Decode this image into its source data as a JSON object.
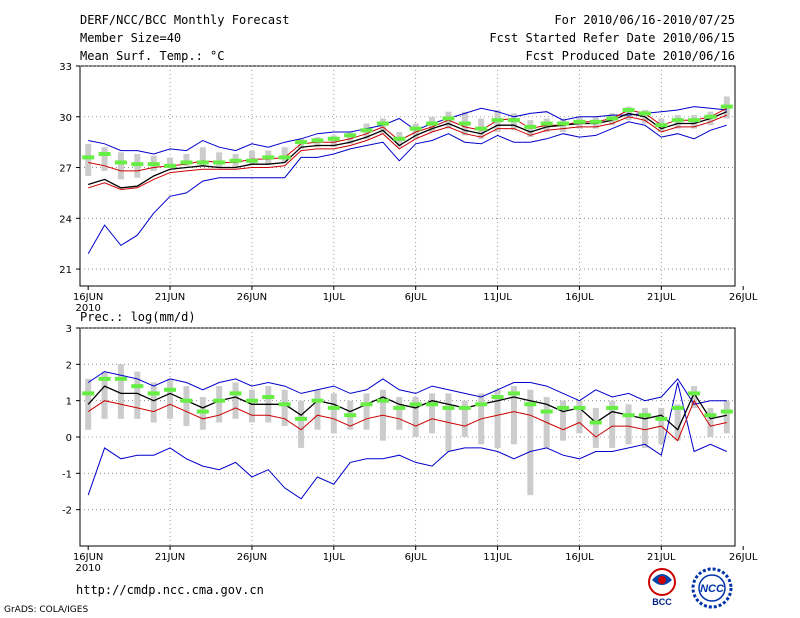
{
  "header": {
    "title": "DERF/NCC/BCC Monthly Forecast",
    "member_size": "Member Size=40",
    "variable": "Mean Surf. Temp.: °C",
    "period": "For 2010/06/16-2010/07/25",
    "refer_date": "Fcst Started Refer Date 2010/06/15",
    "produced_date": "Fcst Produced Date 2010/06/16"
  },
  "footer": {
    "url": "http://cmdp.ncc.cma.gov.cn",
    "grads": "GrADS: COLA/IGES",
    "logo_left": "BCC",
    "logo_right": "NCC"
  },
  "colors": {
    "envelope": "#0000cc",
    "ensemble_mean": "#000000",
    "lower_line": "#cc0000",
    "median_marker": "#66ee44",
    "spread_bar": "#cccccc",
    "grid": "#808080"
  },
  "chart_data": [
    {
      "type": "line",
      "title": "Mean Surf. Temp.: °C",
      "x_tick_labels": [
        "16JUN",
        "21JUN",
        "26JUN",
        "1JUL",
        "6JUL",
        "11JUL",
        "16JUL",
        "21JUL",
        "26JUL"
      ],
      "x_year_label": "2010",
      "ylim": [
        20,
        33
      ],
      "y_ticks": [
        21,
        24,
        27,
        30,
        33
      ],
      "days": 40,
      "series": [
        {
          "name": "max",
          "values": [
            28.6,
            28.4,
            28.0,
            28.0,
            27.8,
            28.1,
            28.0,
            28.6,
            28.2,
            28.0,
            28.4,
            28.2,
            28.5,
            28.7,
            29.0,
            29.1,
            29.1,
            29.3,
            29.5,
            29.9,
            29.2,
            29.6,
            29.9,
            30.2,
            30.5,
            30.3,
            30.0,
            30.2,
            30.3,
            29.8,
            30.0,
            30.0,
            30.1,
            30.1,
            30.2,
            30.3,
            30.4,
            30.6,
            30.5,
            30.4
          ]
        },
        {
          "name": "upper",
          "values": [
            27.3,
            27.1,
            26.8,
            26.8,
            27.0,
            27.1,
            27.2,
            27.4,
            27.3,
            27.3,
            27.5,
            27.5,
            27.6,
            28.4,
            28.5,
            28.5,
            28.7,
            29.0,
            29.4,
            28.6,
            29.1,
            29.4,
            29.8,
            29.4,
            29.2,
            29.8,
            29.9,
            29.3,
            29.5,
            29.5,
            29.7,
            29.7,
            29.9,
            30.4,
            30.2,
            29.5,
            29.8,
            29.8,
            30.0,
            30.5
          ]
        },
        {
          "name": "mean",
          "values": [
            26.0,
            26.3,
            25.8,
            25.9,
            26.5,
            26.9,
            27.0,
            27.1,
            27.0,
            27.0,
            27.2,
            27.2,
            27.3,
            28.2,
            28.3,
            28.3,
            28.5,
            28.8,
            29.2,
            28.3,
            28.9,
            29.3,
            29.6,
            29.2,
            29.0,
            29.5,
            29.5,
            29.1,
            29.4,
            29.5,
            29.6,
            29.6,
            29.8,
            30.2,
            30.0,
            29.3,
            29.6,
            29.6,
            29.9,
            30.3
          ]
        },
        {
          "name": "lower",
          "values": [
            25.8,
            26.1,
            25.7,
            25.8,
            26.3,
            26.7,
            26.8,
            26.9,
            26.9,
            26.9,
            27.0,
            27.0,
            27.1,
            28.0,
            28.1,
            28.1,
            28.3,
            28.6,
            29.0,
            28.1,
            28.7,
            29.1,
            29.4,
            29.0,
            28.8,
            29.3,
            29.3,
            28.9,
            29.2,
            29.3,
            29.4,
            29.4,
            29.6,
            30.0,
            29.8,
            29.1,
            29.4,
            29.4,
            29.7,
            30.1
          ]
        },
        {
          "name": "min",
          "values": [
            21.9,
            23.6,
            22.4,
            23.0,
            24.3,
            25.3,
            25.5,
            26.2,
            26.4,
            26.4,
            26.4,
            26.4,
            26.4,
            27.6,
            27.6,
            27.8,
            28.1,
            28.3,
            28.5,
            27.4,
            28.4,
            28.6,
            29.0,
            28.5,
            28.4,
            28.9,
            28.5,
            28.5,
            28.7,
            29.0,
            28.8,
            28.9,
            29.3,
            29.7,
            29.5,
            28.8,
            29.0,
            28.7,
            29.2,
            29.5
          ]
        },
        {
          "name": "median",
          "values": [
            27.6,
            27.8,
            27.3,
            27.2,
            27.2,
            27.1,
            27.3,
            27.3,
            27.3,
            27.4,
            27.4,
            27.6,
            27.6,
            28.5,
            28.6,
            28.7,
            28.9,
            29.2,
            29.6,
            28.7,
            29.3,
            29.6,
            29.9,
            29.6,
            29.3,
            29.8,
            29.8,
            29.4,
            29.6,
            29.6,
            29.7,
            29.7,
            29.9,
            30.4,
            30.2,
            29.5,
            29.8,
            29.8,
            30.0,
            30.6
          ]
        },
        {
          "name": "spread_low",
          "values": [
            26.5,
            26.8,
            26.3,
            26.4,
            26.8,
            27.0,
            27.1,
            27.1,
            27.0,
            27.0,
            27.2,
            27.2,
            27.3,
            28.1,
            28.2,
            28.2,
            28.4,
            28.7,
            29.0,
            28.2,
            28.7,
            29.1,
            29.3,
            28.9,
            28.7,
            29.1,
            29.2,
            28.8,
            29.1,
            29.1,
            29.3,
            29.3,
            29.5,
            29.8,
            29.6,
            29.1,
            29.3,
            29.3,
            29.5,
            29.9
          ]
        },
        {
          "name": "spread_high",
          "values": [
            28.4,
            28.2,
            27.9,
            27.8,
            27.7,
            27.6,
            27.8,
            28.2,
            27.9,
            27.8,
            28.0,
            28.0,
            28.2,
            28.7,
            28.8,
            28.9,
            29.1,
            29.6,
            29.9,
            29.1,
            29.6,
            30.0,
            30.3,
            30.3,
            29.9,
            30.4,
            30.2,
            29.8,
            29.9,
            29.9,
            30.0,
            30.0,
            30.2,
            30.6,
            30.4,
            29.9,
            30.1,
            30.1,
            30.3,
            31.2
          ]
        }
      ]
    },
    {
      "type": "line",
      "title": "Prec.: log(mm/d)",
      "x_tick_labels": [
        "16JUN",
        "21JUN",
        "26JUN",
        "1JUL",
        "6JUL",
        "11JUL",
        "16JUL",
        "21JUL",
        "26JUL"
      ],
      "x_year_label": "2010",
      "ylim": [
        -3,
        3
      ],
      "y_ticks": [
        -2,
        -1,
        0,
        1,
        2,
        3
      ],
      "days": 40,
      "series": [
        {
          "name": "max",
          "values": [
            1.5,
            1.8,
            1.7,
            1.6,
            1.4,
            1.6,
            1.5,
            1.3,
            1.5,
            1.6,
            1.4,
            1.5,
            1.4,
            1.2,
            1.3,
            1.4,
            1.2,
            1.3,
            1.6,
            1.3,
            1.2,
            1.4,
            1.3,
            1.2,
            1.1,
            1.3,
            1.5,
            1.5,
            1.4,
            1.2,
            1.0,
            1.3,
            1.1,
            1.2,
            1.0,
            1.1,
            1.6,
            0.9,
            1.0,
            1.0
          ]
        },
        {
          "name": "mean",
          "values": [
            0.9,
            1.4,
            1.2,
            1.2,
            1.0,
            1.2,
            1.0,
            0.8,
            1.0,
            1.1,
            0.9,
            0.9,
            0.9,
            0.6,
            1.0,
            0.9,
            0.7,
            0.9,
            1.1,
            0.9,
            0.8,
            1.0,
            0.9,
            0.8,
            0.9,
            1.0,
            1.1,
            1.0,
            0.9,
            0.7,
            0.8,
            0.4,
            0.7,
            0.6,
            0.5,
            0.6,
            0.2,
            1.2,
            0.5,
            0.6
          ]
        },
        {
          "name": "lower",
          "values": [
            0.7,
            1.0,
            0.9,
            0.8,
            0.7,
            0.9,
            0.7,
            0.5,
            0.6,
            0.8,
            0.6,
            0.6,
            0.5,
            0.2,
            0.6,
            0.5,
            0.3,
            0.5,
            0.6,
            0.5,
            0.3,
            0.5,
            0.4,
            0.3,
            0.5,
            0.6,
            0.7,
            0.6,
            0.4,
            0.2,
            0.4,
            0.0,
            0.3,
            0.3,
            0.2,
            0.3,
            -0.1,
            1.0,
            0.3,
            0.4
          ]
        },
        {
          "name": "min",
          "values": [
            -1.6,
            -0.3,
            -0.6,
            -0.5,
            -0.5,
            -0.3,
            -0.6,
            -0.8,
            -0.9,
            -0.7,
            -1.1,
            -0.9,
            -1.4,
            -1.7,
            -1.1,
            -1.3,
            -0.7,
            -0.6,
            -0.6,
            -0.5,
            -0.7,
            -0.8,
            -0.4,
            -0.3,
            -0.3,
            -0.4,
            -0.6,
            -0.4,
            -0.3,
            -0.5,
            -0.6,
            -0.4,
            -0.4,
            -0.3,
            -0.2,
            -0.5,
            1.5,
            -0.4,
            -0.2,
            -0.4
          ]
        },
        {
          "name": "median",
          "values": [
            1.2,
            1.6,
            1.6,
            1.4,
            1.2,
            1.3,
            1.0,
            0.7,
            1.0,
            1.2,
            1.0,
            1.1,
            0.9,
            0.5,
            1.0,
            0.8,
            0.6,
            0.9,
            1.0,
            0.8,
            0.9,
            0.9,
            0.8,
            0.8,
            0.9,
            1.1,
            1.2,
            0.9,
            0.7,
            0.8,
            0.8,
            0.4,
            0.8,
            0.6,
            0.6,
            0.5,
            0.8,
            1.2,
            0.6,
            0.7
          ]
        },
        {
          "name": "spread_low",
          "values": [
            0.2,
            0.5,
            0.5,
            0.5,
            0.4,
            0.5,
            0.3,
            0.2,
            0.4,
            0.5,
            0.4,
            0.4,
            0.3,
            -0.3,
            0.2,
            0.1,
            0.2,
            0.2,
            -0.1,
            0.2,
            0.0,
            0.1,
            -0.4,
            0.0,
            -0.2,
            -0.3,
            -0.2,
            -1.6,
            -0.3,
            -0.1,
            0.1,
            -0.3,
            -0.3,
            -0.2,
            -0.3,
            -0.2,
            -0.1,
            0.8,
            0.0,
            0.1
          ]
        },
        {
          "name": "spread_high",
          "values": [
            1.6,
            1.8,
            2.0,
            1.8,
            1.5,
            1.6,
            1.4,
            1.1,
            1.4,
            1.5,
            1.3,
            1.4,
            1.3,
            1.0,
            1.3,
            1.2,
            1.0,
            1.2,
            1.3,
            1.1,
            1.1,
            1.2,
            1.2,
            1.0,
            1.2,
            1.3,
            1.4,
            1.3,
            1.1,
            1.0,
            1.0,
            0.8,
            1.0,
            0.9,
            0.8,
            0.8,
            0.9,
            1.4,
            0.8,
            1.0
          ]
        }
      ]
    }
  ]
}
